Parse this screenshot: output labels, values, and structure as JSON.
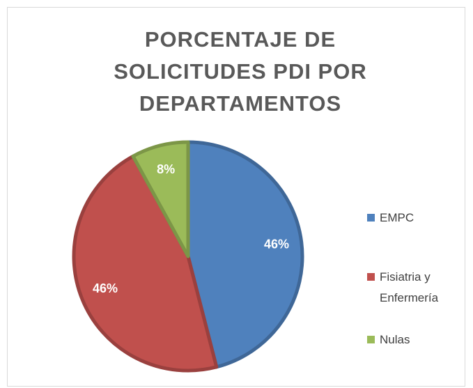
{
  "chart_data": {
    "type": "pie",
    "title": "PORCENTAJE DE SOLICITUDES PDI POR DEPARTAMENTOS",
    "categories": [
      "EMPC",
      "Fisiatria y Enfermería",
      "Nulas"
    ],
    "values": [
      46,
      46,
      8
    ],
    "value_labels": [
      "46%",
      "46%",
      "8%"
    ],
    "colors": [
      "#4f81bd",
      "#c0504d",
      "#9bbb59"
    ],
    "legend": "right"
  }
}
